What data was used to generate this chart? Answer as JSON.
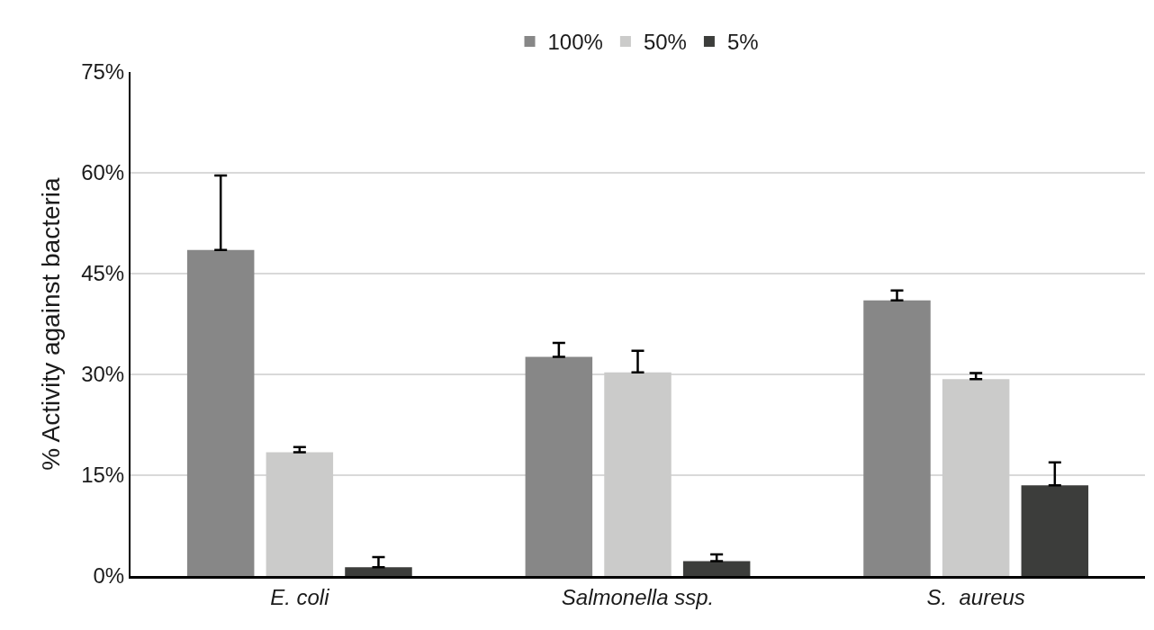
{
  "chart_data": {
    "type": "bar",
    "ylabel": "% Activity against bacteria",
    "categories": [
      "E. coli",
      "Salmonella ssp.",
      "S.  aureus"
    ],
    "series": [
      {
        "name": "100%",
        "color": "#878787",
        "values": [
          48.5,
          32.6,
          41.0
        ],
        "errors": [
          [
            48.5,
            59.6
          ],
          [
            32.6,
            34.7
          ],
          [
            41.0,
            42.5
          ]
        ]
      },
      {
        "name": "50%",
        "color": "#cbcbca",
        "values": [
          18.4,
          30.3,
          29.3
        ],
        "errors": [
          [
            18.4,
            19.2
          ],
          [
            30.3,
            33.5
          ],
          [
            29.3,
            30.2
          ]
        ]
      },
      {
        "name": "5%",
        "color": "#3c3d3b",
        "values": [
          1.3,
          2.2,
          13.5
        ],
        "errors": [
          [
            1.3,
            2.8
          ],
          [
            2.2,
            3.2
          ],
          [
            13.5,
            16.9
          ]
        ]
      }
    ],
    "ylim": [
      0,
      75
    ],
    "yticks": [
      {
        "value": 0,
        "label": "0%"
      },
      {
        "value": 15,
        "label": "15%"
      },
      {
        "value": 30,
        "label": "30%"
      },
      {
        "value": 45,
        "label": "45%"
      },
      {
        "value": 60,
        "label": "60%"
      },
      {
        "value": 75,
        "label": "75%"
      }
    ],
    "grid": "y",
    "legend": "top"
  }
}
